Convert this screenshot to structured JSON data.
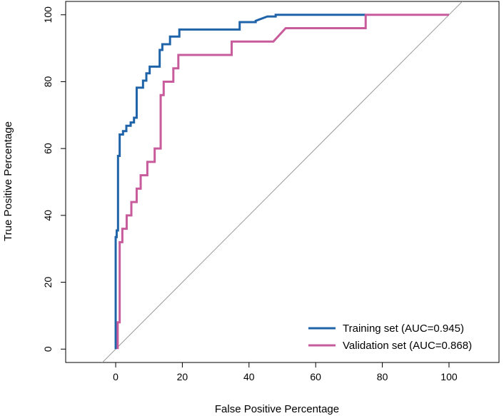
{
  "chart_data": {
    "type": "line",
    "title": "",
    "xlabel": "False Positive Percentage",
    "ylabel": "True Positive Percentage",
    "xlim": [
      -15,
      115
    ],
    "ylim": [
      -4,
      104
    ],
    "x_ticks": [
      0,
      20,
      40,
      60,
      80,
      100
    ],
    "y_ticks": [
      0,
      20,
      40,
      60,
      80,
      100
    ],
    "x_tick_labels": [
      "0",
      "20",
      "40",
      "60",
      "80",
      "100"
    ],
    "y_tick_labels": [
      "0",
      "20",
      "40",
      "60",
      "80",
      "100"
    ],
    "grid": false,
    "legend_position": "bottom-right",
    "reference_line": {
      "name": "chance diagonal",
      "color": "#9a9a9a",
      "points": [
        [
          -15,
          -15
        ],
        [
          115,
          115
        ]
      ]
    },
    "series": [
      {
        "name": "Training set (AUC=0.945)",
        "color": "#1f63a8",
        "x": [
          0,
          0,
          0.3,
          0.3,
          0.7,
          0.7,
          1.2,
          1.2,
          2.2,
          2.2,
          3.2,
          3.2,
          4.5,
          4.5,
          5.5,
          5.5,
          6.3,
          6.3,
          8.2,
          8.2,
          9.2,
          9.2,
          10.2,
          10.2,
          13.2,
          13.2,
          14,
          14,
          16.3,
          16.3,
          19.1,
          19.1,
          37.2,
          37.2,
          42,
          42,
          45.5,
          48,
          48,
          75
        ],
        "y": [
          0,
          33.5,
          33.5,
          35.5,
          35.5,
          57.8,
          57.8,
          64.2,
          64.2,
          65.2,
          65.2,
          66.8,
          66.8,
          67.8,
          67.8,
          69.2,
          69.2,
          78.2,
          78.2,
          80.3,
          80.3,
          82.5,
          82.5,
          84.5,
          84.5,
          89.5,
          89.5,
          91.2,
          91.2,
          93.5,
          93.5,
          95.6,
          95.6,
          97.8,
          97.8,
          98.2,
          99.5,
          99.5,
          100,
          100
        ]
      },
      {
        "name": "Validation set (AUC=0.868)",
        "color": "#c75b9b",
        "x": [
          0.6,
          0.6,
          1.2,
          1.2,
          2,
          2,
          3.3,
          3.3,
          4.7,
          4.7,
          6.3,
          6.3,
          7.5,
          7.5,
          9.5,
          9.5,
          11.7,
          11.7,
          13.5,
          13.5,
          14.4,
          14.4,
          17.3,
          17.3,
          18.8,
          18.8,
          34.8,
          34.8,
          47.3,
          51,
          51,
          75,
          75,
          100
        ],
        "y": [
          0,
          8,
          8,
          32,
          32,
          36,
          36,
          40,
          40,
          44,
          44,
          48,
          48,
          52,
          52,
          56,
          56,
          60,
          60,
          76,
          76,
          80,
          80,
          84,
          84,
          88,
          88,
          92,
          92,
          96,
          96,
          96,
          100,
          100
        ]
      }
    ]
  }
}
